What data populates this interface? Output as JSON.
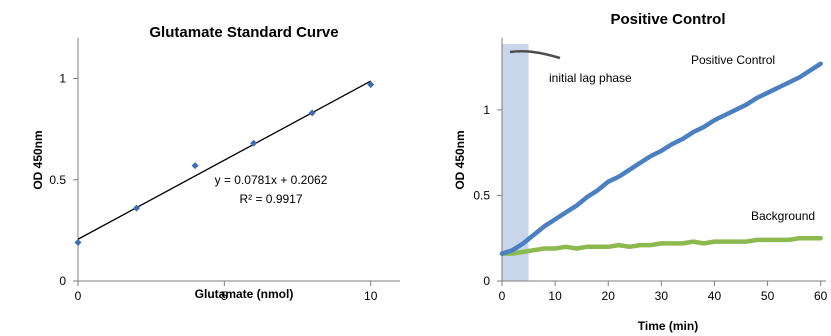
{
  "chart_data": [
    {
      "type": "scatter",
      "title": "Glutamate Standard Curve",
      "xlabel": "Glutamate (nmol)",
      "ylabel": "OD 450nm",
      "xlim": [
        0,
        11
      ],
      "ylim": [
        0,
        1.2
      ],
      "xticks": [
        "0",
        "5",
        "10"
      ],
      "yticks": [
        "0",
        "0.5",
        "1"
      ],
      "series": [
        {
          "x": [
            0,
            2,
            4,
            6,
            8,
            10
          ],
          "y": [
            0.19,
            0.36,
            0.57,
            0.68,
            0.83,
            0.97
          ]
        }
      ],
      "trendline": {
        "slope": 0.0781,
        "intercept": 0.2062
      },
      "equation": "y = 0.0781x + 0.2062",
      "r_squared": "R² = 0.9917",
      "colors": {
        "points": "#3d6db5",
        "trendline": "#000000"
      }
    },
    {
      "type": "line",
      "title": "Positive Control",
      "xlabel": "Time (min)",
      "ylabel": "OD 450nm",
      "xlim": [
        0,
        61
      ],
      "ylim": [
        0,
        1.42
      ],
      "xticks": [
        "0",
        "10",
        "20",
        "30",
        "40",
        "50",
        "60"
      ],
      "yticks": [
        "0",
        "0.5",
        "1"
      ],
      "series": [
        {
          "name": "Positive Control",
          "color": "#4a7fc1",
          "x": [
            0,
            2,
            4,
            6,
            8,
            10,
            12,
            14,
            16,
            18,
            20,
            22,
            24,
            26,
            28,
            30,
            32,
            34,
            36,
            38,
            40,
            42,
            44,
            46,
            48,
            50,
            52,
            54,
            56,
            58,
            60
          ],
          "y": [
            0.16,
            0.18,
            0.22,
            0.27,
            0.32,
            0.36,
            0.4,
            0.44,
            0.49,
            0.53,
            0.58,
            0.61,
            0.65,
            0.69,
            0.73,
            0.76,
            0.8,
            0.83,
            0.87,
            0.9,
            0.94,
            0.97,
            1.0,
            1.03,
            1.07,
            1.1,
            1.13,
            1.16,
            1.19,
            1.23,
            1.27
          ]
        },
        {
          "name": "Background",
          "color": "#8cba4f",
          "x": [
            0,
            2,
            4,
            6,
            8,
            10,
            12,
            14,
            16,
            18,
            20,
            22,
            24,
            26,
            28,
            30,
            32,
            34,
            36,
            38,
            40,
            42,
            44,
            46,
            48,
            50,
            52,
            54,
            56,
            58,
            60
          ],
          "y": [
            0.16,
            0.16,
            0.17,
            0.18,
            0.19,
            0.19,
            0.2,
            0.19,
            0.2,
            0.2,
            0.2,
            0.21,
            0.2,
            0.21,
            0.21,
            0.22,
            0.22,
            0.22,
            0.23,
            0.22,
            0.23,
            0.23,
            0.23,
            0.23,
            0.24,
            0.24,
            0.24,
            0.24,
            0.25,
            0.25,
            0.25
          ]
        }
      ],
      "shaded_region": {
        "x": [
          0,
          5
        ],
        "label": "initial lag phase",
        "color": "#c9d6ea"
      },
      "labels": {
        "positive": "Positive Control",
        "background": "Background"
      }
    }
  ]
}
